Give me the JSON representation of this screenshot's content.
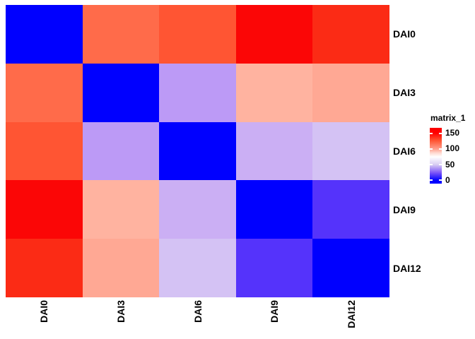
{
  "figure": {
    "background": "#ffffff",
    "row_labels": [
      "DAI0",
      "DAI3",
      "DAI6",
      "DAI9",
      "DAI12"
    ],
    "col_labels": [
      "DAI0",
      "DAI3",
      "DAI6",
      "DAI9",
      "DAI12"
    ],
    "cell_colors": [
      [
        "#0000ff",
        "#ff6b4a",
        "#ff5533",
        "#fb0606",
        "#fb2b15"
      ],
      [
        "#ff6b4a",
        "#0000ff",
        "#bc9af6",
        "#ffb3a0",
        "#ffa894"
      ],
      [
        "#ff5533",
        "#bc9af6",
        "#0000ff",
        "#cbaff4",
        "#d4c2f4"
      ],
      [
        "#fb0606",
        "#ffb3a0",
        "#cbaff4",
        "#0000ff",
        "#5533fb"
      ],
      [
        "#fb2b15",
        "#ffa894",
        "#d4c2f4",
        "#5533fb",
        "#0000ff"
      ]
    ],
    "legend": {
      "title": "matrix_1",
      "tick_labels": [
        "150",
        "100",
        "50",
        "0"
      ],
      "max_color": "#ff0000",
      "mid_color": "#ffffff",
      "min_color": "#0000ff"
    }
  },
  "chart_data": {
    "type": "heatmap",
    "title": "",
    "legend_title": "matrix_1",
    "legend_position": "right",
    "rows": [
      "DAI0",
      "DAI3",
      "DAI6",
      "DAI9",
      "DAI12"
    ],
    "columns": [
      "DAI0",
      "DAI3",
      "DAI6",
      "DAI9",
      "DAI12"
    ],
    "values": [
      [
        0,
        122,
        130,
        148,
        140
      ],
      [
        122,
        0,
        45,
        100,
        103
      ],
      [
        130,
        45,
        0,
        55,
        60
      ],
      [
        148,
        100,
        55,
        0,
        20
      ],
      [
        140,
        103,
        60,
        20,
        0
      ]
    ],
    "colorscale": {
      "min": 0,
      "mid": 75,
      "max": 150,
      "min_color": "#0000ff",
      "mid_color": "#ffffff",
      "max_color": "#ff0000"
    },
    "legend_ticks": [
      150,
      100,
      50,
      0
    ],
    "grid": false
  }
}
